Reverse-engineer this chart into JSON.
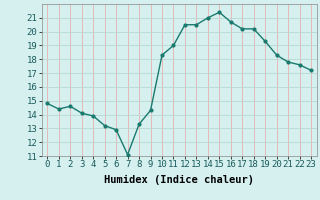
{
  "title": "",
  "xlabel": "Humidex (Indice chaleur)",
  "x": [
    0,
    1,
    2,
    3,
    4,
    5,
    6,
    7,
    8,
    9,
    10,
    11,
    12,
    13,
    14,
    15,
    16,
    17,
    18,
    19,
    20,
    21,
    22,
    23
  ],
  "y": [
    14.8,
    14.4,
    14.6,
    14.1,
    13.9,
    13.2,
    12.9,
    11.1,
    13.3,
    14.3,
    18.3,
    19.0,
    20.5,
    20.5,
    21.0,
    21.4,
    20.7,
    20.2,
    20.2,
    19.3,
    18.3,
    17.8,
    17.6,
    17.2
  ],
  "line_color": "#1a7a6e",
  "marker": "o",
  "marker_size": 2.0,
  "bg_color": "#d6f0f0",
  "grid_color": "#c0dada",
  "red_grid_color": "#e8b8b8",
  "ylim": [
    11,
    22
  ],
  "xlim": [
    -0.5,
    23.5
  ],
  "yticks": [
    11,
    12,
    13,
    14,
    15,
    16,
    17,
    18,
    19,
    20,
    21
  ],
  "xticks": [
    0,
    1,
    2,
    3,
    4,
    5,
    6,
    7,
    8,
    9,
    10,
    11,
    12,
    13,
    14,
    15,
    16,
    17,
    18,
    19,
    20,
    21,
    22,
    23
  ],
  "tick_label_fontsize": 6.5,
  "xlabel_fontsize": 7.5,
  "line_width": 1.0
}
